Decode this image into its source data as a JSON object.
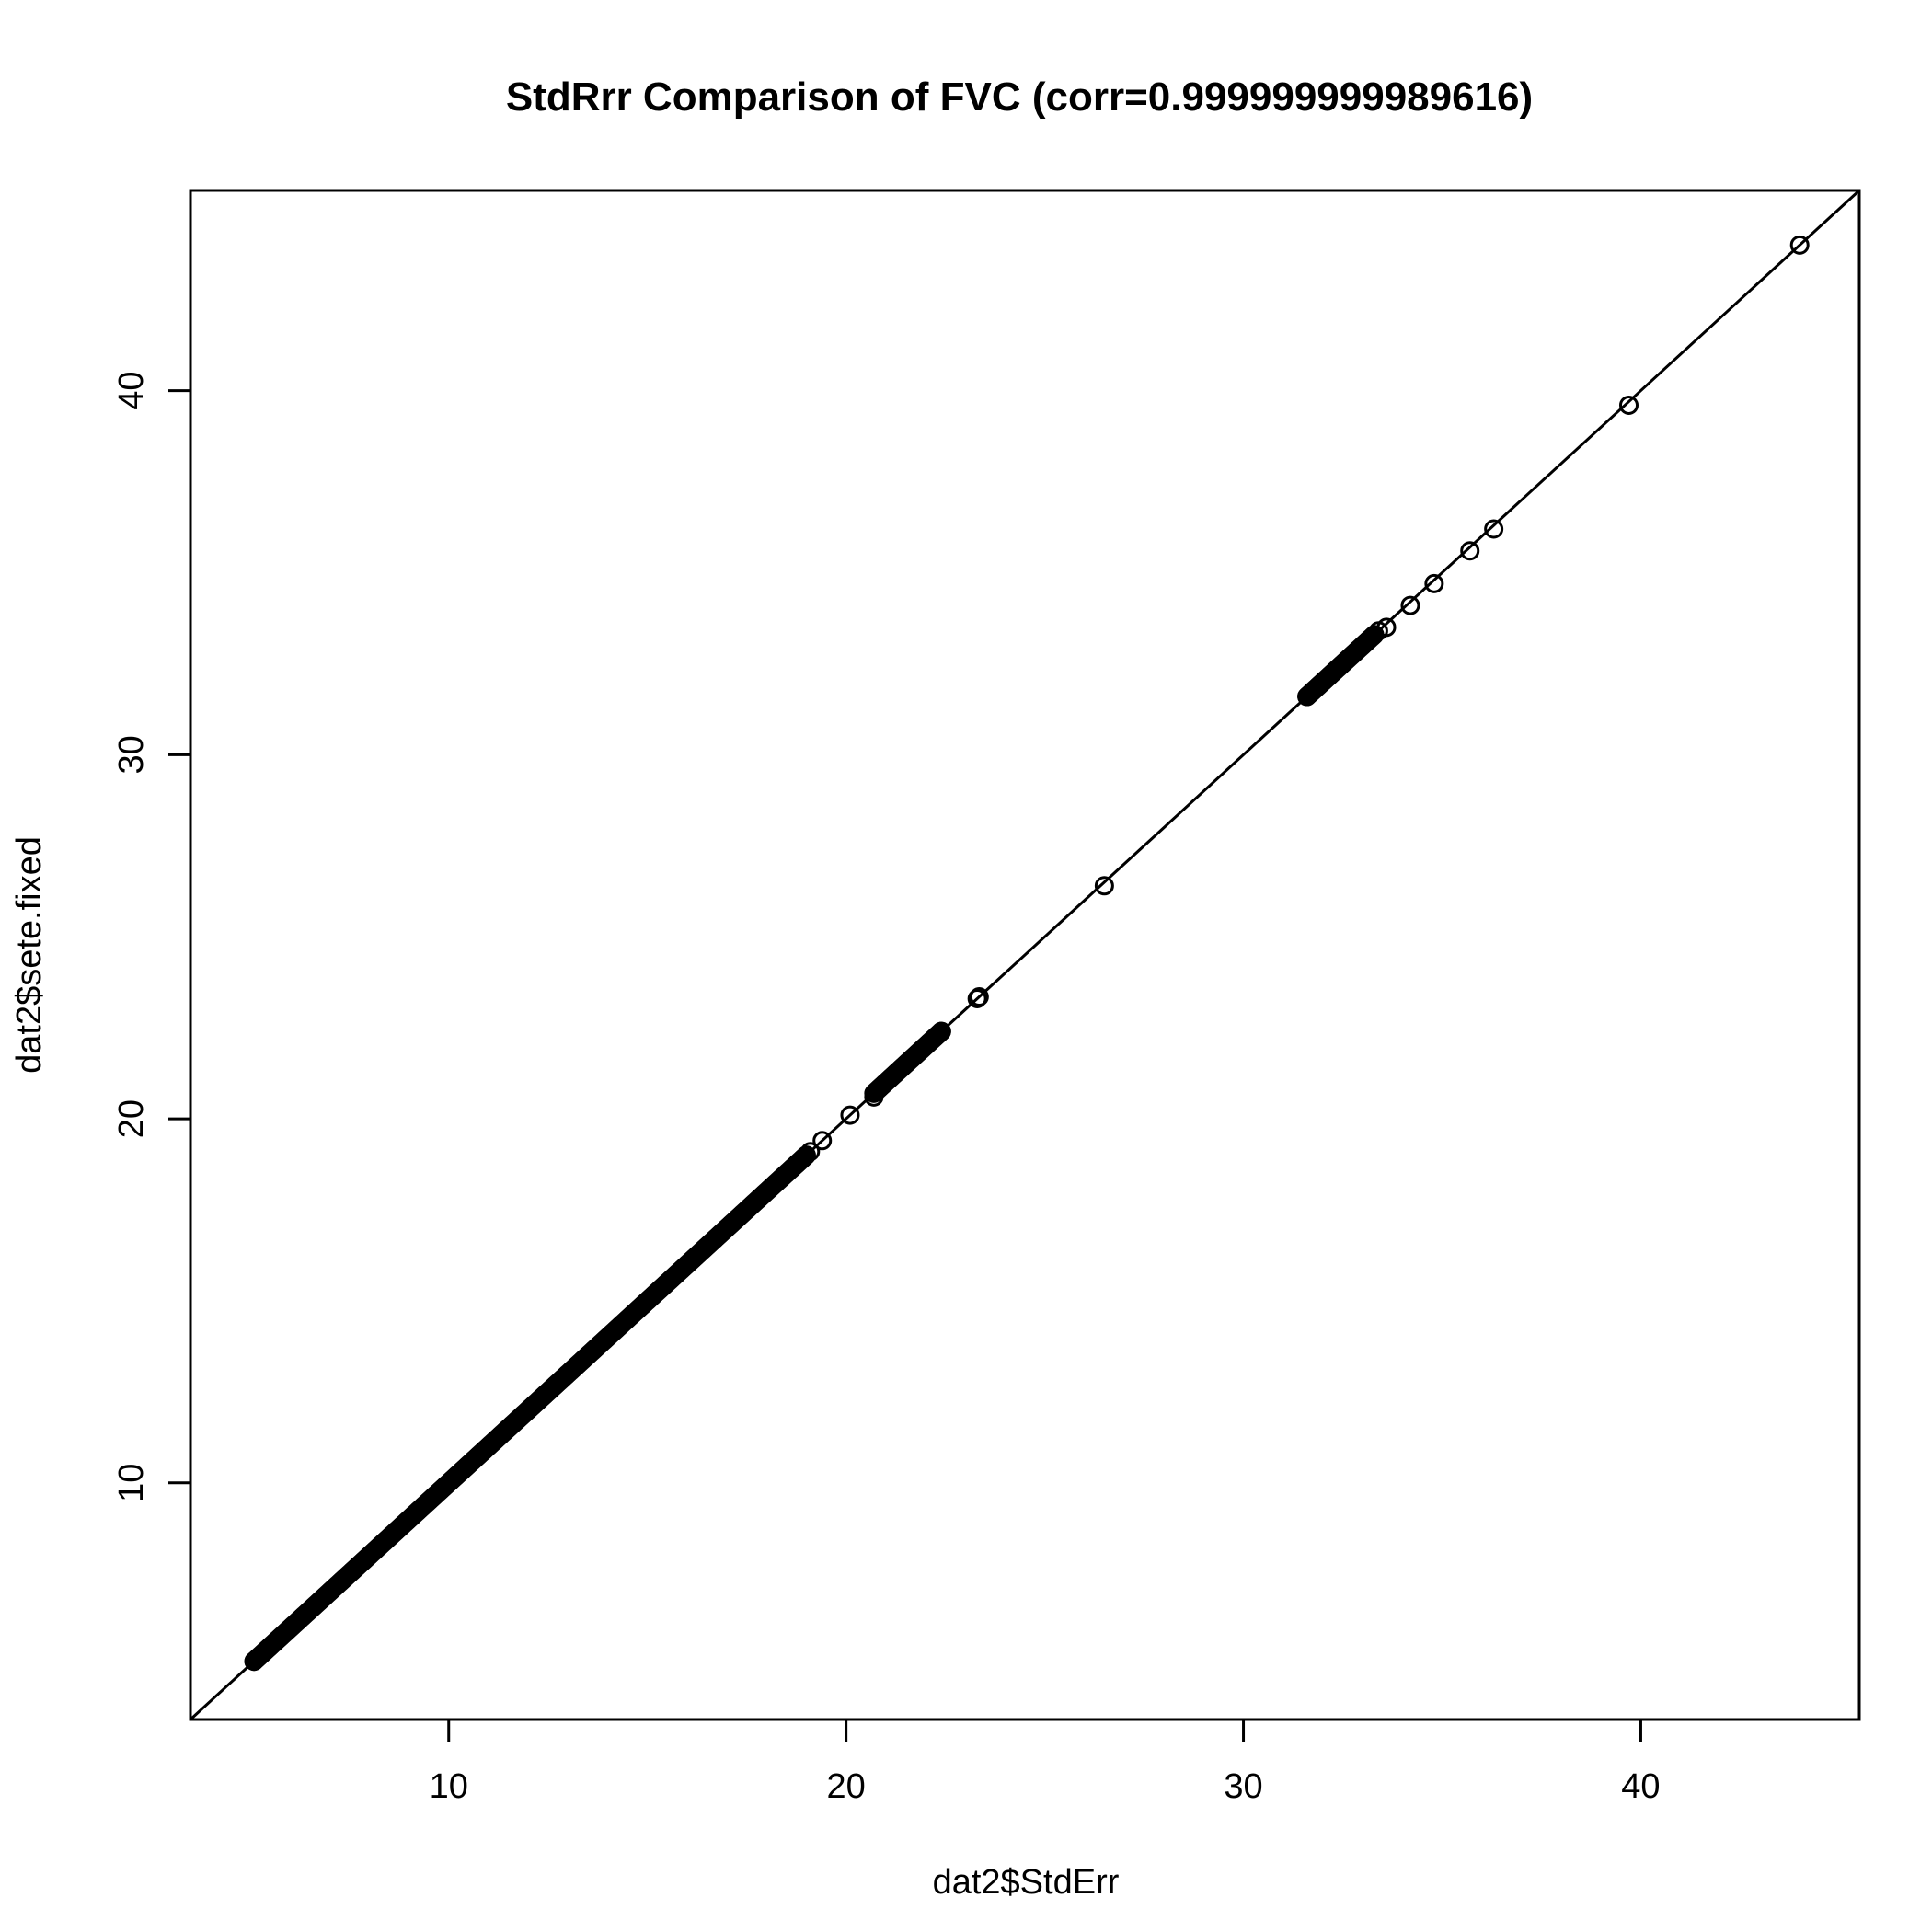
{
  "chart_data": {
    "type": "scatter",
    "title": "StdRrr Comparison of FVC (corr=0.999999999989616)",
    "xlabel": "dat2$StdErr",
    "ylabel": "dat2$sete.fixed",
    "xlim": [
      3.5,
      45.5
    ],
    "ylim": [
      3.5,
      45.5
    ],
    "xticks": [
      "10",
      "20",
      "30",
      "40"
    ],
    "yticks": [
      "10",
      "20",
      "30",
      "40"
    ],
    "reference_line": {
      "intercept": 0,
      "slope": 1
    },
    "grid": false,
    "legend": "none",
    "point_style": "open-circle",
    "dense_runs": [
      {
        "from": 5.1,
        "to": 19.0
      },
      {
        "from": 20.7,
        "to": 22.4
      },
      {
        "from": 31.6,
        "to": 33.3
      }
    ],
    "points": [
      {
        "x": 5.1,
        "y": 5.1
      },
      {
        "x": 19.1,
        "y": 19.1
      },
      {
        "x": 19.4,
        "y": 19.4
      },
      {
        "x": 20.1,
        "y": 20.1
      },
      {
        "x": 20.7,
        "y": 20.6
      },
      {
        "x": 22.3,
        "y": 22.3
      },
      {
        "x": 22.4,
        "y": 22.4
      },
      {
        "x": 23.3,
        "y": 23.3
      },
      {
        "x": 23.35,
        "y": 23.35
      },
      {
        "x": 26.5,
        "y": 26.4
      },
      {
        "x": 31.6,
        "y": 31.6
      },
      {
        "x": 33.4,
        "y": 33.4
      },
      {
        "x": 33.6,
        "y": 33.5
      },
      {
        "x": 34.2,
        "y": 34.1
      },
      {
        "x": 34.8,
        "y": 34.7
      },
      {
        "x": 35.7,
        "y": 35.6
      },
      {
        "x": 36.3,
        "y": 36.2
      },
      {
        "x": 39.7,
        "y": 39.6
      },
      {
        "x": 44.0,
        "y": 44.0
      }
    ]
  }
}
